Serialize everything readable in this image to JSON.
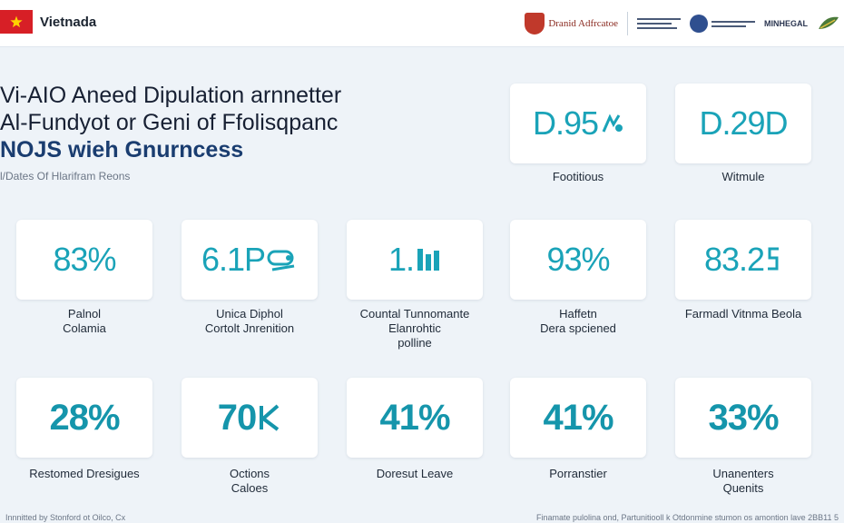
{
  "header": {
    "brand": "Vietnada",
    "partners": [
      {
        "name": "Dranid Adfrcatoe"
      },
      {
        "name": "MINHEGAL"
      }
    ]
  },
  "intro": {
    "title_lines": [
      "Vi-AIO Aneed Dipulation arnnetter",
      "Al-Fundyot or Geni of Ffolisqpanc",
      "NOJS wieh Gnurncess"
    ],
    "subtitle": "l/Dates Of Hlarifram Reons"
  },
  "stats": [
    {
      "value": "D.95",
      "label_lines": [
        "Footitious"
      ]
    },
    {
      "value": "D.29D",
      "label_lines": [
        "Witmule"
      ]
    },
    {
      "value": "83%",
      "label_lines": [
        "Palnol",
        "Colamia"
      ]
    },
    {
      "value": "6.1P",
      "label_lines": [
        "Unica Diphol",
        "Cortolt Jnrenition"
      ]
    },
    {
      "value": "1.",
      "label_lines": [
        "Countal Tunnomante",
        "Elanrohtic",
        "polline"
      ]
    },
    {
      "value": "93%",
      "label_lines": [
        "Haffetn",
        "Dera spciened"
      ]
    },
    {
      "value": "83.2",
      "label_lines": [
        "Farmadl Vitnma Beola"
      ]
    },
    {
      "value": "28%",
      "label_lines": [
        "Restomed Dresigues"
      ]
    },
    {
      "value": "70",
      "label_lines": [
        "Octions",
        "Caloes"
      ]
    },
    {
      "value": "41%",
      "label_lines": [
        "Doresut Leave"
      ]
    },
    {
      "value": "41%",
      "label_lines": [
        "Porranstier"
      ]
    },
    {
      "value": "33%",
      "label_lines": [
        "Unanenters",
        "Quenits"
      ]
    }
  ],
  "footer": {
    "left": "Innnitted by Stonford ot Oilco, Cx",
    "right": "Finamate pulolina ond, Partunitiooll k Otdonmine stumon os amontion lave 2BB11 5"
  },
  "colors": {
    "accent": "#1aa3b8",
    "flag": "#d71f26"
  }
}
